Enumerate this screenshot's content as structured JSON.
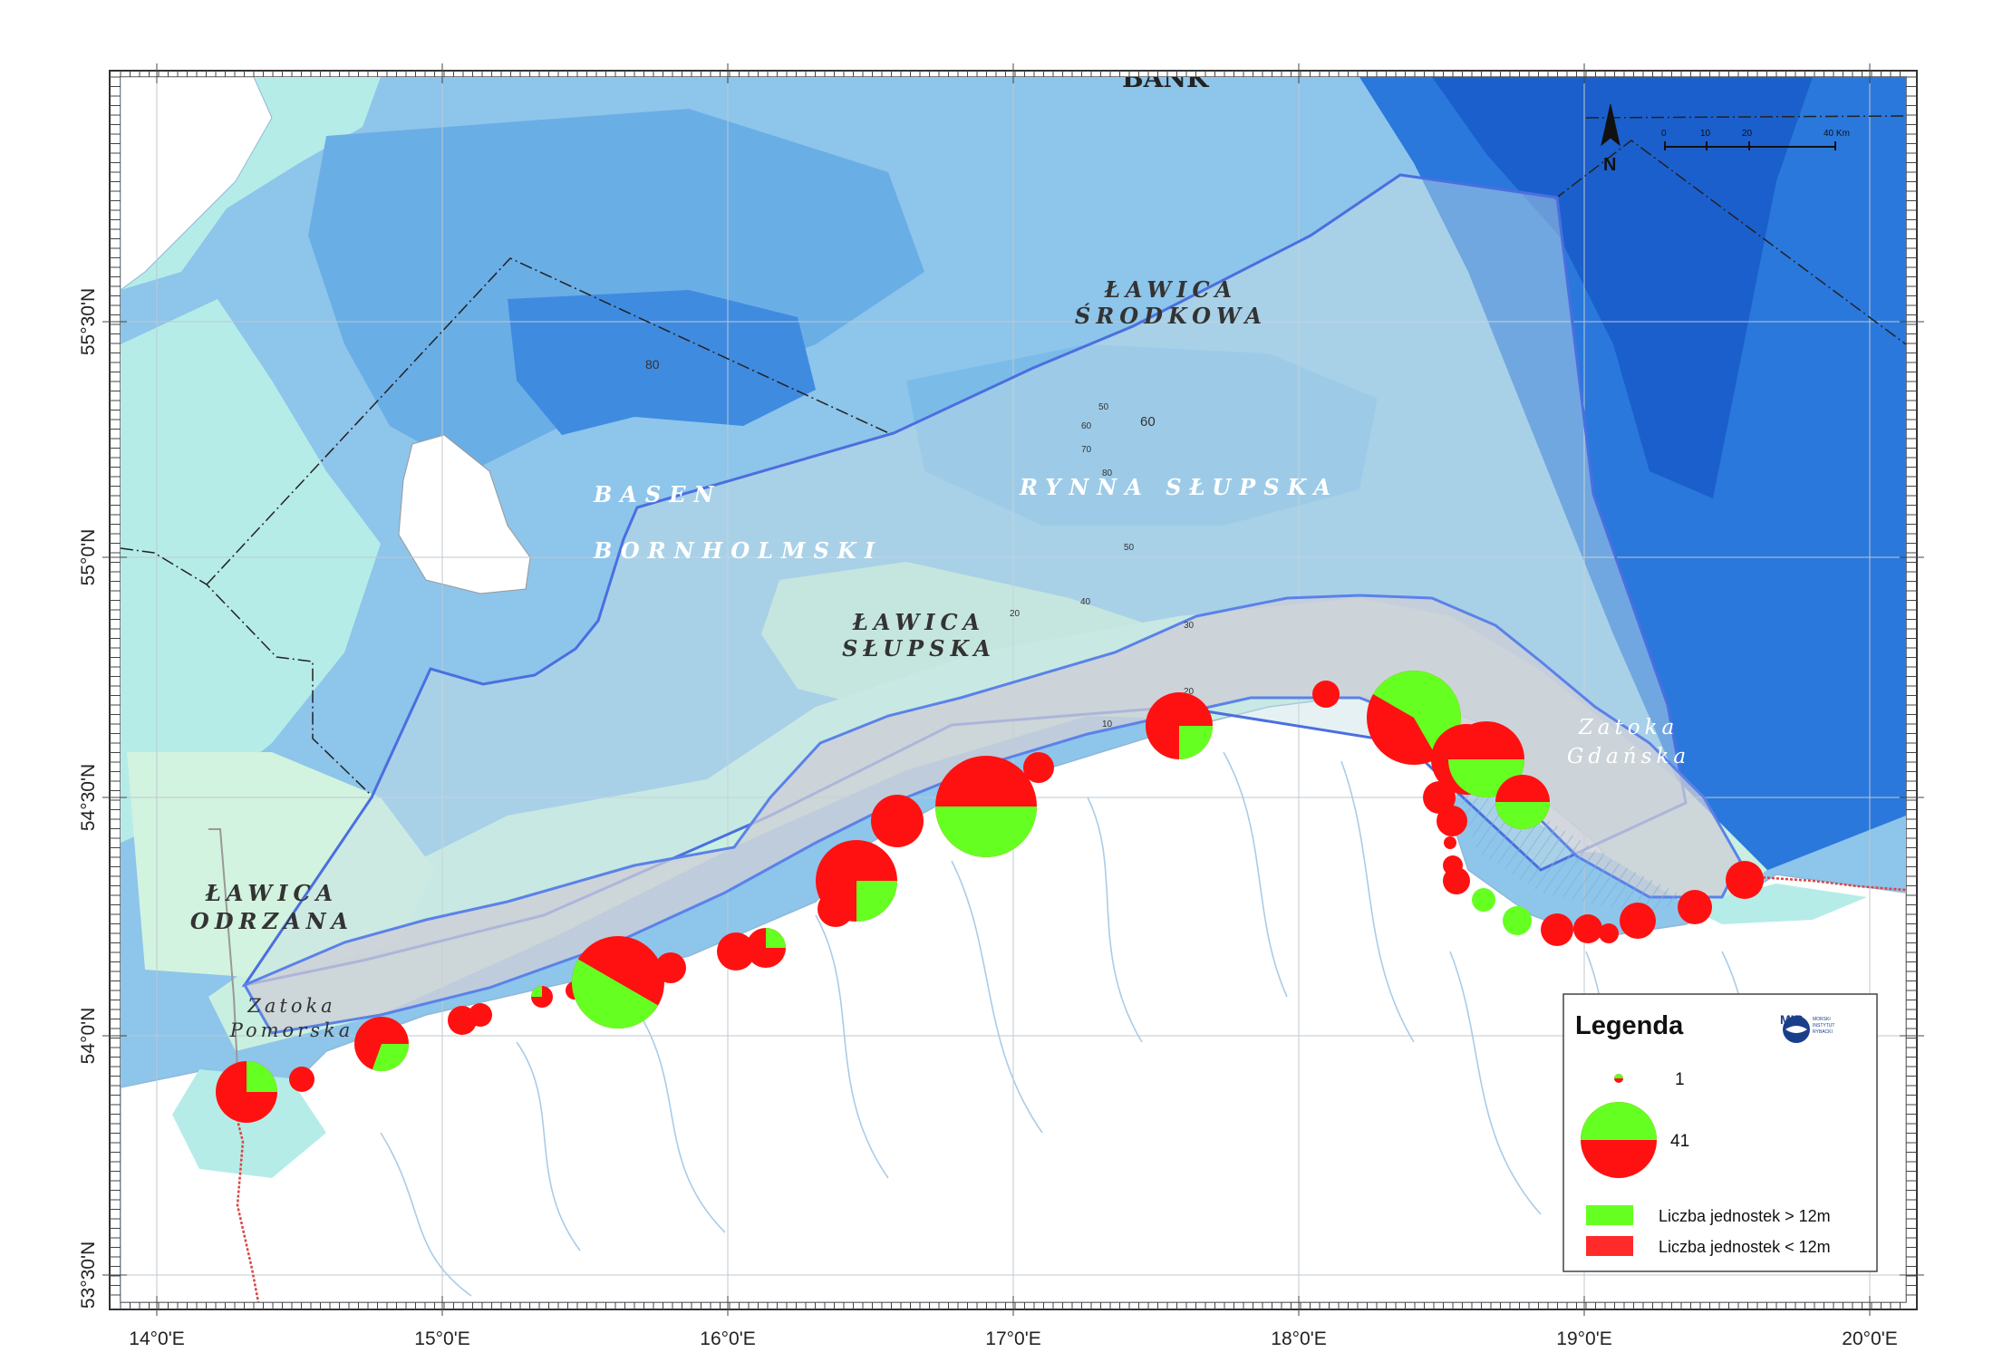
{
  "map": {
    "top_label": "BANK",
    "place_labels": [
      {
        "id": "lawica-srodkowa",
        "lines": [
          "ŁAWICA",
          "ŚRODKOWA"
        ]
      },
      {
        "id": "basen-bornholmski",
        "lines": [
          "BASEN",
          "BORNHOLMSKI"
        ]
      },
      {
        "id": "rynna-slupska",
        "lines": [
          "RYNNA SŁUPSKA"
        ]
      },
      {
        "id": "lawica-slupska",
        "lines": [
          "ŁAWICA",
          "SŁUPSKA"
        ]
      },
      {
        "id": "lawica-odrzana",
        "lines": [
          "ŁAWICA",
          "ODRZANA"
        ]
      },
      {
        "id": "zatoka-pomorska",
        "lines": [
          "Zatoka",
          "Pomorska"
        ]
      },
      {
        "id": "zatoka-gdanska",
        "lines": [
          "Zatoka",
          "Gdańska"
        ]
      }
    ],
    "depth_labels": [
      "80",
      "60",
      "50",
      "60",
      "70",
      "80",
      "50",
      "40",
      "20",
      "30",
      "20",
      "10"
    ],
    "lon_ticks": [
      "14°0'E",
      "15°0'E",
      "16°0'E",
      "17°0'E",
      "18°0'E",
      "19°0'E",
      "20°0'E"
    ],
    "lat_ticks": [
      "55°30'N",
      "55°0'N",
      "54°30'N",
      "54°0'N",
      "53°30'N"
    ],
    "north_arrow": "N",
    "scale_bar": {
      "labels": [
        "0",
        "10",
        "20",
        "40 Km"
      ]
    },
    "legend": {
      "title": "Legenda",
      "size_small_label": "1",
      "size_large_label": "41",
      "items": [
        {
          "label": "Liczba jednostek > 12m",
          "color": "#66ff22"
        },
        {
          "label": "Liczba jednostek < 12m",
          "color": "#ff1111"
        }
      ],
      "logo_text": "MIR",
      "logo_sub": [
        "MORSKI",
        "INSTYTUT",
        "RYBACKI"
      ]
    },
    "colors": {
      "vessels_over_12m": "#66ff22",
      "vessels_under_12m": "#ff1111",
      "sea_shallow": "#b6ece8",
      "sea_deep": "#2f7ee0",
      "land": "#ffffff",
      "border": "#d94545"
    }
  }
}
